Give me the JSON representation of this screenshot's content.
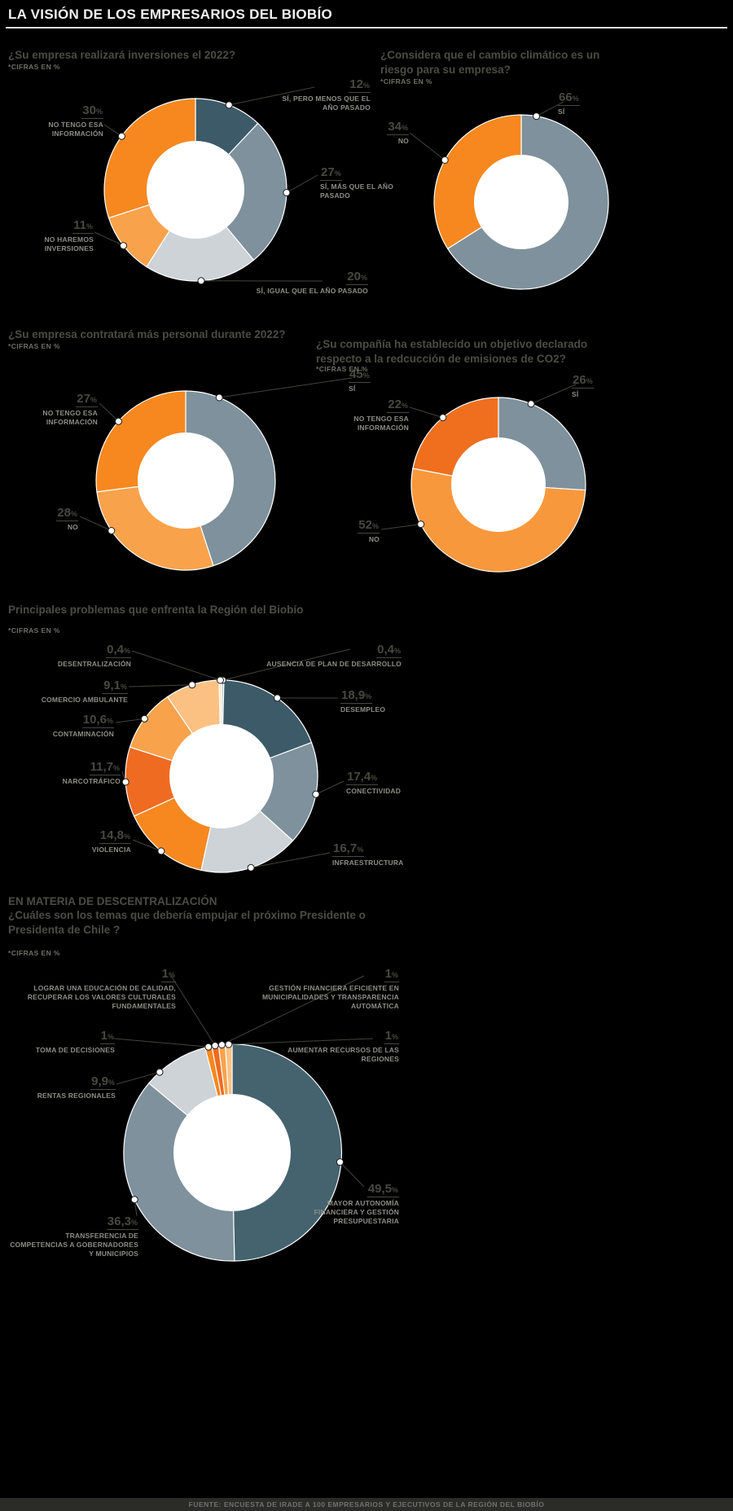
{
  "meta": {
    "title": "LA VISIÓN DE LOS EMPRESARIOS DEL BIOBÍO",
    "cifras": "*CIFRAS EN %",
    "unit": "%",
    "source": "FUENTE: ENCUESTA DE IRADE A 100 EMPRESARIOS Y EJECUTIVOS DE LA REGIÓN DEL BIOBÍO"
  },
  "chart_data": [
    {
      "type": "pie",
      "title": "¿Su empresa realizará inversiones el 2022?",
      "slices": [
        {
          "label": "SÍ, PERO MENOS QUE EL AÑO PASADO",
          "value": 12,
          "display": "12",
          "color": "#3d5a68"
        },
        {
          "label": "SÍ, MÁS QUE EL AÑO PASADO",
          "value": 27,
          "display": "27",
          "color": "#7e919c"
        },
        {
          "label": "SÍ, IGUAL QUE EL AÑO PASADO",
          "value": 20,
          "display": "20",
          "color": "#cdd3d6"
        },
        {
          "label": "NO HAREMOS INVERSIONES",
          "value": 11,
          "display": "11",
          "color": "#f9a24c"
        },
        {
          "label": "NO TENGO ESA INFORMACIÓN",
          "value": 30,
          "display": "30",
          "color": "#f6881f"
        }
      ]
    },
    {
      "type": "pie",
      "title": "¿Considera que el cambio climático es un riesgo para su empresa?",
      "slices": [
        {
          "label": "SÍ",
          "value": 66,
          "display": "66",
          "color": "#7e919c"
        },
        {
          "label": "NO",
          "value": 34,
          "display": "34",
          "color": "#f6881f"
        }
      ]
    },
    {
      "type": "pie",
      "title": "¿Su empresa contratará más personal durante 2022?",
      "slices": [
        {
          "label": "SÍ",
          "value": 45,
          "display": "45",
          "color": "#7e919c"
        },
        {
          "label": "NO",
          "value": 28,
          "display": "28",
          "color": "#f9a24c"
        },
        {
          "label": "NO TENGO ESA INFORMACIÓN",
          "value": 27,
          "display": "27",
          "color": "#f6881f"
        }
      ]
    },
    {
      "type": "pie",
      "title": "¿Su compañía ha establecido un objetivo declarado respecto a la redcucción de emisiones de CO2?",
      "slices": [
        {
          "label": "SÍ",
          "value": 26,
          "display": "26",
          "color": "#7e919c"
        },
        {
          "label": "NO",
          "value": 52,
          "display": "52",
          "color": "#f8983c"
        },
        {
          "label": "NO TENGO ESA INFORMACIÓN",
          "value": 22,
          "display": "22",
          "color": "#ef6f1f"
        }
      ]
    },
    {
      "type": "pie",
      "title": "Principales problemas que enfrenta la Región del Biobío",
      "slices": [
        {
          "label": "AUSENCIA DE PLAN DE DESARROLLO",
          "value": 0.4,
          "display": "0,4",
          "color": "#b9ccd6"
        },
        {
          "label": "DESEMPLEO",
          "value": 18.9,
          "display": "18,9",
          "color": "#3d5a68"
        },
        {
          "label": "CONECTIVIDAD",
          "value": 17.4,
          "display": "17,4",
          "color": "#7e919c"
        },
        {
          "label": "INFRAESTRUCTURA",
          "value": 16.7,
          "display": "16,7",
          "color": "#cdd3d6"
        },
        {
          "label": "VIOLENCIA",
          "value": 14.8,
          "display": "14,8",
          "color": "#f6881f"
        },
        {
          "label": "NARCOTRÁFICO",
          "value": 11.7,
          "display": "11,7",
          "color": "#ef6b21"
        },
        {
          "label": "CONTAMINACIÓN",
          "value": 10.6,
          "display": "10,6",
          "color": "#f9a24c"
        },
        {
          "label": "COMERCIO AMBULANTE",
          "value": 9.1,
          "display": "9,1",
          "color": "#fbc183"
        },
        {
          "label": "DESENTRALIZACIÓN",
          "value": 0.4,
          "display": "0,4",
          "color": "#fde3c2"
        }
      ]
    },
    {
      "type": "pie",
      "kicker": "EN MATERIA DE DESCENTRALIZACIÓN",
      "title": "¿Cuáles son los temas que debería empujar el próximo Presidente o Presidenta de Chile ?",
      "slices": [
        {
          "label": "MAYOR AUTONOMÍA FINANCIERA Y GESTIÓN PRESUPUESTARIA",
          "value": 49.5,
          "display": "49,5",
          "color": "#44636f"
        },
        {
          "label": "TRANSFERENCIA DE COMPETENCIAS A GOBERNADORES Y MUNICIPIOS",
          "value": 36.3,
          "display": "36,3",
          "color": "#7e919c"
        },
        {
          "label": "RENTAS REGIONALES",
          "value": 9.9,
          "display": "9,9",
          "color": "#cdd3d6"
        },
        {
          "label": "TOMA DE DECISIONES",
          "value": 1,
          "display": "1",
          "color": "#f6881f"
        },
        {
          "label": "LOGRAR UNA EDUCACIÓN DE CALIDAD, RECUPERAR LOS VALORES CULTURALES FUNDAMENTALES",
          "value": 1,
          "display": "1",
          "color": "#ef6b21"
        },
        {
          "label": "GESTIÓN FINANCIERA EFICIENTE EN MUNICIPALIDADES Y TRANSPARENCIA AUTOMÁTICA",
          "value": 1,
          "display": "1",
          "color": "#f9a24c"
        },
        {
          "label": "AUMENTAR RECURSOS DE LAS REGIONES",
          "value": 1,
          "display": "1",
          "color": "#fbc183"
        }
      ]
    }
  ]
}
